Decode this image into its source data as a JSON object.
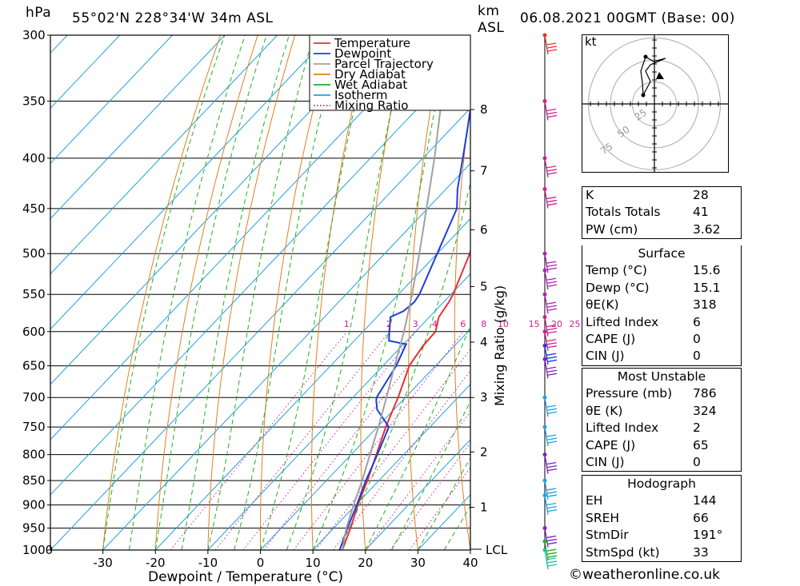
{
  "header": {
    "unit_hpa": "hPa",
    "location": "55°02'N  228°34'W  34m  ASL",
    "unit_km": "km",
    "unit_asl": "ASL",
    "datetime": "06.08.2021  00GMT  (Base: 00)"
  },
  "chart_data": {
    "type": "line",
    "title": "55°02'N  228°34'W  34m  ASL",
    "xlabel": "Dewpoint / Temperature (°C)",
    "ylabel": "hPa",
    "ylabel_right": "Mixing Ratio (g/kg)",
    "xlim": [
      -40,
      40
    ],
    "ylim": [
      1000,
      300
    ],
    "x_ticks": [
      "-30",
      "-20",
      "-10",
      "0",
      "10",
      "20",
      "30",
      "40"
    ],
    "pressure_levels": [
      300,
      350,
      400,
      450,
      500,
      550,
      600,
      650,
      700,
      750,
      800,
      850,
      900,
      950,
      1000
    ],
    "km_ticks": [
      {
        "km": "1",
        "p": 905
      },
      {
        "km": "2",
        "p": 795
      },
      {
        "km": "3",
        "p": 700
      },
      {
        "km": "4",
        "p": 615
      },
      {
        "km": "5",
        "p": 540
      },
      {
        "km": "6",
        "p": 473
      },
      {
        "km": "7",
        "p": 412
      },
      {
        "km": "8",
        "p": 357
      }
    ],
    "lcl_label": "LCL",
    "mixing_ratio_labels": [
      "1",
      "2",
      "3",
      "4",
      "6",
      "8",
      "10",
      "15",
      "20",
      "25"
    ],
    "mixing_ratio_values": [
      1,
      2,
      3,
      4,
      6,
      8,
      10,
      15,
      20,
      25
    ],
    "legend": {
      "position": "top-right",
      "entries": [
        {
          "name": "Temperature",
          "color": "#e83030",
          "style": "solid"
        },
        {
          "name": "Dewpoint",
          "color": "#1e3ce0",
          "style": "solid"
        },
        {
          "name": "Parcel Trajectory",
          "color": "#a0a0a0",
          "style": "solid"
        },
        {
          "name": "Dry Adiabat",
          "color": "#e08020",
          "style": "solid"
        },
        {
          "name": "Wet Adiabat",
          "color": "#20b020",
          "style": "solid"
        },
        {
          "name": "Isotherm",
          "color": "#20a0e0",
          "style": "solid"
        },
        {
          "name": "Mixing Ratio",
          "color": "#d0208c",
          "style": "dotted"
        }
      ]
    },
    "series": [
      {
        "name": "Temperature",
        "color": "#e83030",
        "points": [
          [
            1000,
            15.6
          ],
          [
            950,
            13.2
          ],
          [
            900,
            10.4
          ],
          [
            850,
            7.8
          ],
          [
            800,
            4.8
          ],
          [
            750,
            1.6
          ],
          [
            700,
            -1.4
          ],
          [
            650,
            -5.0
          ],
          [
            620,
            -6.0
          ],
          [
            600,
            -6.2
          ],
          [
            580,
            -8.2
          ],
          [
            560,
            -9.0
          ],
          [
            550,
            -9.6
          ],
          [
            500,
            -13.8
          ],
          [
            450,
            -19.4
          ],
          [
            400,
            -25.8
          ],
          [
            350,
            -34.0
          ],
          [
            300,
            -44.4
          ]
        ]
      },
      {
        "name": "Dewpoint",
        "color": "#1e3ce0",
        "points": [
          [
            1000,
            15.1
          ],
          [
            950,
            12.6
          ],
          [
            900,
            10.2
          ],
          [
            850,
            7.5
          ],
          [
            800,
            5.0
          ],
          [
            750,
            2.2
          ],
          [
            720,
            -3.2
          ],
          [
            705,
            -5.0
          ],
          [
            700,
            -5.5
          ],
          [
            650,
            -7.5
          ],
          [
            618,
            -9.5
          ],
          [
            613,
            -13.4
          ],
          [
            595,
            -15.6
          ],
          [
            580,
            -17.4
          ],
          [
            572,
            -16.0
          ],
          [
            560,
            -15.6
          ],
          [
            550,
            -16.0
          ],
          [
            500,
            -20.0
          ],
          [
            450,
            -24.4
          ],
          [
            430,
            -27.8
          ],
          [
            400,
            -32.4
          ],
          [
            350,
            -41.0
          ],
          [
            300,
            -51.0
          ]
        ]
      },
      {
        "name": "Parcel Trajectory",
        "color": "#a0a0a0",
        "points": [
          [
            1000,
            15.6
          ],
          [
            950,
            12.4
          ],
          [
            900,
            9.6
          ],
          [
            850,
            6.8
          ],
          [
            800,
            3.6
          ],
          [
            750,
            0.2
          ],
          [
            700,
            -3.6
          ],
          [
            650,
            -7.8
          ],
          [
            600,
            -12.2
          ],
          [
            550,
            -17.4
          ],
          [
            500,
            -23.4
          ],
          [
            450,
            -30.2
          ],
          [
            400,
            -37.8
          ],
          [
            350,
            -46.8
          ],
          [
            300,
            -57.4
          ]
        ]
      }
    ]
  },
  "wind": {
    "levels": [
      {
        "p": 300,
        "color": "#e83030"
      },
      {
        "p": 350,
        "color": "#d0208c"
      },
      {
        "p": 400,
        "color": "#d0208c"
      },
      {
        "p": 430,
        "color": "#d0208c"
      },
      {
        "p": 500,
        "color": "#b020b0"
      },
      {
        "p": 520,
        "color": "#b020b0"
      },
      {
        "p": 550,
        "color": "#b020b0"
      },
      {
        "p": 580,
        "color": "#d0208c"
      },
      {
        "p": 600,
        "color": "#d0208c"
      },
      {
        "p": 620,
        "color": "#1e3ce0"
      },
      {
        "p": 640,
        "color": "#8020c0"
      },
      {
        "p": 700,
        "color": "#20a0e0"
      },
      {
        "p": 750,
        "color": "#20a0e0"
      },
      {
        "p": 800,
        "color": "#8020c0"
      },
      {
        "p": 850,
        "color": "#20a0e0"
      },
      {
        "p": 880,
        "color": "#20a0e0"
      },
      {
        "p": 950,
        "color": "#8020c0"
      },
      {
        "p": 980,
        "color": "#20b020"
      },
      {
        "p": 1000,
        "color": "#20c0a0"
      }
    ]
  },
  "hodograph": {
    "unit": "kt",
    "rings": [
      "25",
      "50",
      "75"
    ]
  },
  "indices": {
    "rows": [
      {
        "label": "K",
        "value": "28"
      },
      {
        "label": "Totals Totals",
        "value": "41"
      },
      {
        "label": "PW (cm)",
        "value": "3.62"
      }
    ]
  },
  "surface": {
    "title": "Surface",
    "rows": [
      {
        "label": "Temp (°C)",
        "value": "15.6"
      },
      {
        "label": "Dewp (°C)",
        "value": "15.1"
      },
      {
        "label": "θE(K)",
        "value": "318"
      },
      {
        "label": "Lifted Index",
        "value": "6"
      },
      {
        "label": "CAPE (J)",
        "value": "0"
      },
      {
        "label": "CIN (J)",
        "value": "0"
      }
    ]
  },
  "most_unstable": {
    "title": "Most Unstable",
    "rows": [
      {
        "label": "Pressure (mb)",
        "value": "786"
      },
      {
        "label": "θE (K)",
        "value": "324"
      },
      {
        "label": "Lifted Index",
        "value": "2"
      },
      {
        "label": "CAPE (J)",
        "value": "65"
      },
      {
        "label": "CIN (J)",
        "value": "0"
      }
    ]
  },
  "hodograph_table": {
    "title": "Hodograph",
    "rows": [
      {
        "label": "EH",
        "value": "144"
      },
      {
        "label": "SREH",
        "value": "66"
      },
      {
        "label": "StmDir",
        "value": "191°"
      },
      {
        "label": "StmSpd (kt)",
        "value": "33"
      }
    ]
  },
  "footer": {
    "copyright": "©weatheronline.co.uk"
  }
}
